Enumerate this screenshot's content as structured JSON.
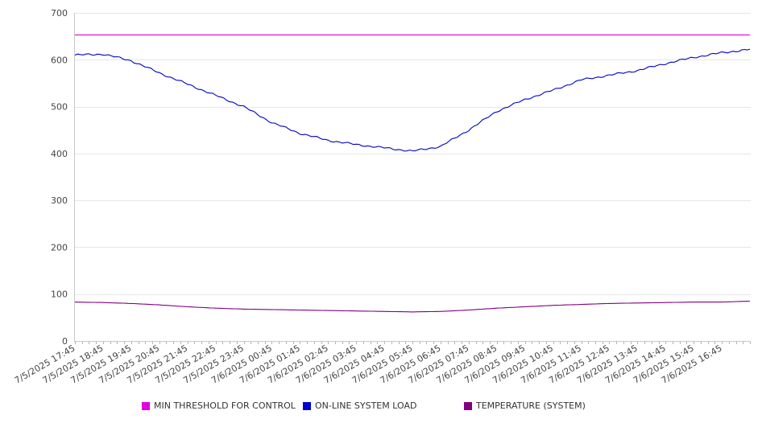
{
  "chart_data": {
    "type": "line",
    "title": "",
    "xlabel": "",
    "ylabel": "",
    "ylim": [
      0,
      700
    ],
    "y_ticks": [
      0,
      100,
      200,
      300,
      400,
      500,
      600,
      700
    ],
    "x_ticks": [
      "7/5/2025 17:45",
      "7/5/2025 18:45",
      "7/5/2025 19:45",
      "7/5/2025 20:45",
      "7/5/2025 21:45",
      "7/5/2025 22:45",
      "7/5/2025 23:45",
      "7/6/2025 00:45",
      "7/6/2025 01:45",
      "7/6/2025 02:45",
      "7/6/2025 03:45",
      "7/6/2025 04:45",
      "7/6/2025 05:45",
      "7/6/2025 06:45",
      "7/6/2025 07:45",
      "7/6/2025 08:45",
      "7/6/2025 09:45",
      "7/6/2025 10:45",
      "7/6/2025 11:45",
      "7/6/2025 12:45",
      "7/6/2025 13:45",
      "7/6/2025 14:45",
      "7/6/2025 15:45",
      "7/6/2025 16:45"
    ],
    "x_hours": [
      0,
      1,
      2,
      3,
      4,
      5,
      6,
      7,
      8,
      9,
      10,
      11,
      12,
      13,
      14,
      15,
      16,
      17,
      18,
      19,
      20,
      21,
      22,
      23,
      24
    ],
    "grid": true,
    "legend_position": "bottom",
    "series": [
      {
        "name": "MIN THRESHOLD FOR CONTROL",
        "color": "#e000e0",
        "values": [
          653,
          653,
          653,
          653,
          653,
          653,
          653,
          653,
          653,
          653,
          653,
          653,
          653,
          653,
          653,
          653,
          653,
          653,
          653,
          653,
          653,
          653,
          653,
          653,
          653
        ]
      },
      {
        "name": "ON-LINE SYSTEM LOAD",
        "color": "#0000cc",
        "values": [
          610,
          612,
          598,
          572,
          548,
          524,
          500,
          466,
          443,
          428,
          419,
          412,
          405,
          415,
          450,
          490,
          515,
          535,
          557,
          567,
          577,
          592,
          605,
          615,
          622
        ]
      },
      {
        "name": "TEMPERATURE (SYSTEM)",
        "color": "#800080",
        "values": [
          83,
          82,
          80,
          77,
          73,
          70,
          68,
          67,
          66,
          65,
          64,
          63,
          62,
          63,
          66,
          70,
          73,
          76,
          78,
          80,
          81,
          82,
          83,
          83,
          85
        ]
      }
    ]
  }
}
